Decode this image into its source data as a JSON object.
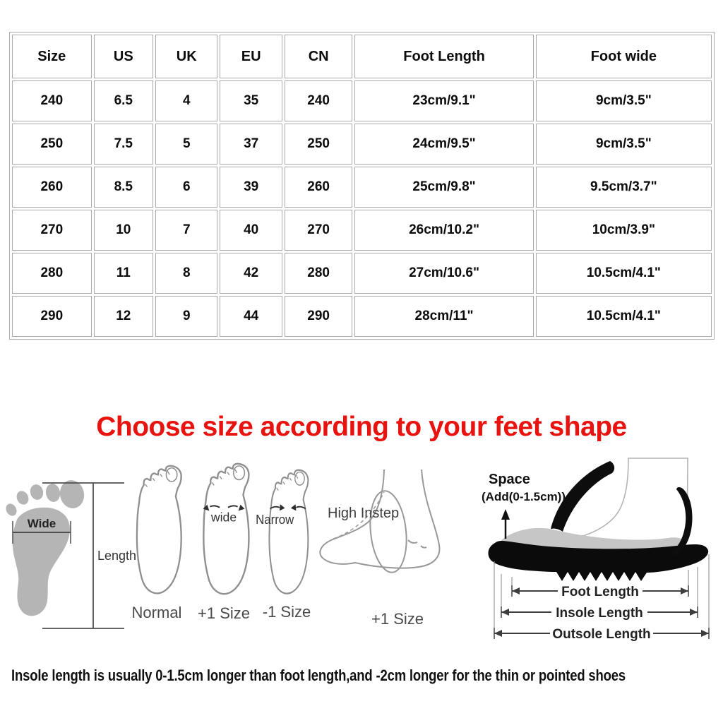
{
  "size_table": {
    "headers": [
      "Size",
      "US",
      "UK",
      "EU",
      "CN",
      "Foot Length",
      "Foot wide"
    ],
    "rows": [
      [
        "240",
        "6.5",
        "4",
        "35",
        "240",
        "23cm/9.1\"",
        "9cm/3.5\""
      ],
      [
        "250",
        "7.5",
        "5",
        "37",
        "250",
        "24cm/9.5\"",
        "9cm/3.5\""
      ],
      [
        "260",
        "8.5",
        "6",
        "39",
        "260",
        "25cm/9.8\"",
        "9.5cm/3.7\""
      ],
      [
        "270",
        "10",
        "7",
        "40",
        "270",
        "26cm/10.2\"",
        "10cm/3.9\""
      ],
      [
        "280",
        "11",
        "8",
        "42",
        "280",
        "27cm/10.6\"",
        "10.5cm/4.1\""
      ],
      [
        "290",
        "12",
        "9",
        "44",
        "290",
        "28cm/11\"",
        "10.5cm/4.1\""
      ]
    ]
  },
  "heading": {
    "text": "Choose size according to your feet shape",
    "color": "#e8120e"
  },
  "diagrams": {
    "footprint": {
      "width_label": "Wide",
      "length_label": "Length"
    },
    "feet": [
      {
        "annotation": "",
        "label": "Normal"
      },
      {
        "annotation": "wide",
        "label": "+1 Size"
      },
      {
        "annotation": "Narrow",
        "label": "-1 Size"
      },
      {
        "annotation": "High Instep",
        "label": "+1 Size"
      }
    ],
    "shoe": {
      "space_title": "Space",
      "space_detail": "(Add(0-1.5cm))",
      "foot_length": "Foot Length",
      "insole_length": "Insole Length",
      "outsole_length": "Outsole Length"
    }
  },
  "footnote": "Insole length is usually 0-1.5cm longer than foot length,and -2cm longer for the thin or pointed shoes"
}
